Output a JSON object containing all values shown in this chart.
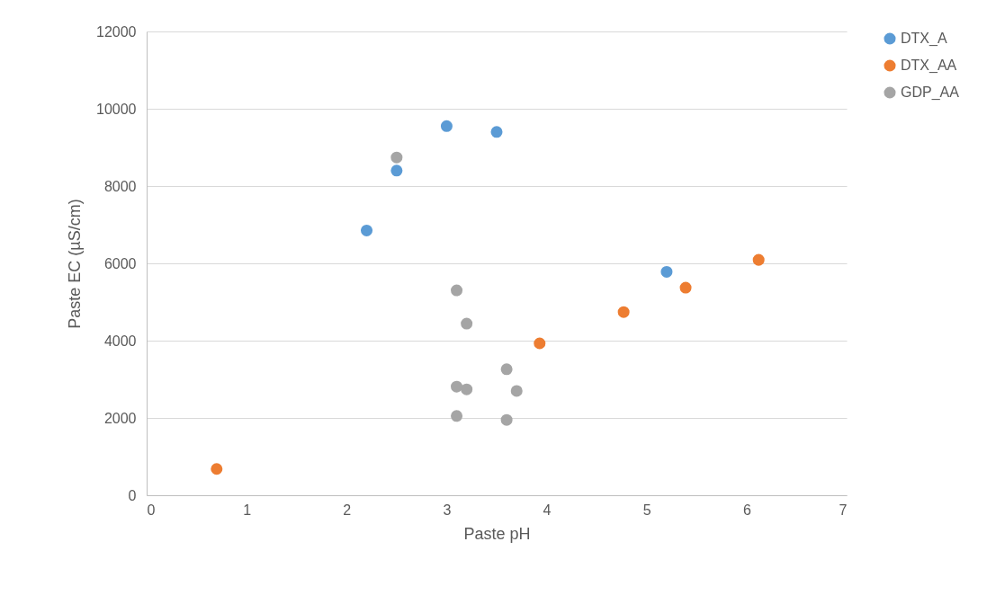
{
  "chart_data": {
    "type": "scatter",
    "xlabel": "Paste pH",
    "ylabel": "Paste EC (µS/cm)",
    "xlim": [
      0,
      7
    ],
    "xticks": [
      0,
      1,
      2,
      3,
      4,
      5,
      6,
      7
    ],
    "ylim": [
      0,
      12000
    ],
    "yticks": [
      0,
      2000,
      4000,
      6000,
      8000,
      10000,
      12000
    ],
    "grid": "y",
    "legend": "right",
    "marker": "circle",
    "series": [
      {
        "name": "DTX_A",
        "color": "#5b9bd5",
        "x": [
          2.2,
          2.5,
          3.0,
          3.5,
          5.2
        ],
        "values": [
          6850,
          8400,
          9550,
          9400,
          5780
        ]
      },
      {
        "name": "DTX_AA",
        "color": "#ed7d31",
        "x": [
          0.7,
          3.93,
          4.77,
          5.39,
          6.12
        ],
        "values": [
          680,
          3930,
          4740,
          5370,
          6090
        ]
      },
      {
        "name": "GDP_AA",
        "color": "#a5a5a5",
        "x": [
          2.5,
          3.1,
          3.2,
          3.6,
          3.1,
          3.2,
          3.7,
          3.1,
          3.6
        ],
        "values": [
          8740,
          5300,
          4440,
          3260,
          2810,
          2740,
          2700,
          2050,
          1950
        ]
      }
    ]
  }
}
